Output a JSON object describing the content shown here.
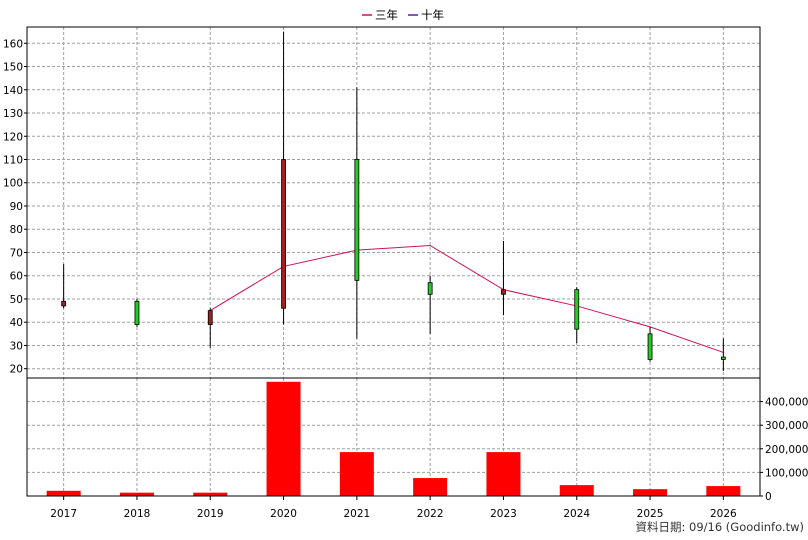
{
  "chart_data": {
    "type": "candlestick+bar",
    "categories": [
      "2017",
      "2018",
      "2019",
      "2020",
      "2021",
      "2022",
      "2023",
      "2024",
      "2025",
      "2026"
    ],
    "legend": [
      {
        "name": "三年",
        "color": "#d0105a"
      },
      {
        "name": "十年",
        "color": "#6020a0"
      }
    ],
    "price_axis": {
      "ylim": [
        16,
        167
      ],
      "ticks": [
        20,
        30,
        40,
        50,
        60,
        70,
        80,
        90,
        100,
        110,
        120,
        130,
        140,
        150,
        160
      ]
    },
    "volume_axis": {
      "ylim": [
        0,
        500000
      ],
      "ticks": [
        0,
        100000,
        200000,
        300000,
        400000
      ],
      "tick_labels": [
        "0",
        "100,000",
        "200,000",
        "300,000",
        "400,000"
      ]
    },
    "candles": [
      {
        "year": "2017",
        "open": 49,
        "close": 47,
        "high": 65,
        "low": 46
      },
      {
        "year": "2018",
        "open": 39,
        "close": 49,
        "high": 50,
        "low": 38
      },
      {
        "year": "2019",
        "open": 45,
        "close": 39,
        "high": 46,
        "low": 29
      },
      {
        "year": "2020",
        "open": 110,
        "close": 46,
        "high": 165,
        "low": 39
      },
      {
        "year": "2021",
        "open": 58,
        "close": 110,
        "high": 141,
        "low": 33
      },
      {
        "year": "2022",
        "open": 52,
        "close": 57,
        "high": 60,
        "low": 35
      },
      {
        "year": "2023",
        "open": 54,
        "close": 52,
        "high": 75,
        "low": 43
      },
      {
        "year": "2024",
        "open": 37,
        "close": 54,
        "high": 55,
        "low": 31
      },
      {
        "year": "2025",
        "open": 24,
        "close": 35,
        "high": 38,
        "low": 23
      },
      {
        "year": "2026",
        "open": 24,
        "close": 25,
        "high": 33,
        "low": 19
      }
    ],
    "ma_line": {
      "name": "三年",
      "x": [
        "2019",
        "2020",
        "2021",
        "2022",
        "2023",
        "2024",
        "2025",
        "2026"
      ],
      "values": [
        45,
        64,
        71,
        73,
        54,
        47,
        38,
        27
      ]
    },
    "volume": [
      22000,
      14000,
      14000,
      484000,
      186000,
      76000,
      186000,
      46000,
      29000,
      42000
    ],
    "up_color": "#22cc22",
    "down_color": "#a02020",
    "volume_color": "#ff0000",
    "grid": true
  },
  "footer": {
    "source": "資料日期: 09/16  (Goodinfo.tw)"
  }
}
